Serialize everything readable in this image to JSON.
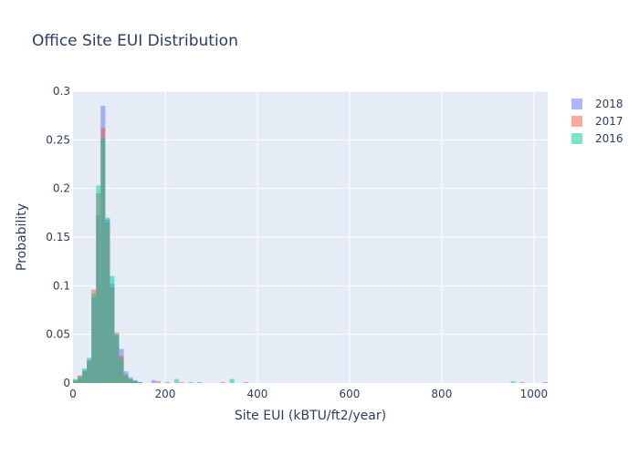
{
  "chart_data": {
    "type": "histogram",
    "title": "Office Site EUI Distribution",
    "xlabel": "Site EUI (kBTU/ft2/year)",
    "ylabel": "Probability",
    "xlim": [
      0,
      1030
    ],
    "ylim": [
      0,
      0.3
    ],
    "x_ticks": [
      0,
      200,
      400,
      600,
      800,
      1000
    ],
    "y_ticks": [
      0,
      0.05,
      0.1,
      0.15,
      0.2,
      0.25,
      0.3
    ],
    "x_tick_labels": [
      "0",
      "200",
      "400",
      "600",
      "800",
      "1000"
    ],
    "y_tick_labels": [
      "0",
      "0.05",
      "0.1",
      "0.15",
      "0.2",
      "0.25",
      "0.3"
    ],
    "grid": true,
    "legend_position": "top-right",
    "bin_width": 10,
    "series": [
      {
        "name": "2018",
        "color": "#636efa",
        "bins": [
          [
            0,
            0.002
          ],
          [
            10,
            0.005
          ],
          [
            20,
            0.013
          ],
          [
            30,
            0.024
          ],
          [
            40,
            0.088
          ],
          [
            50,
            0.172
          ],
          [
            60,
            0.285
          ],
          [
            70,
            0.168
          ],
          [
            80,
            0.102
          ],
          [
            90,
            0.048
          ],
          [
            100,
            0.035
          ],
          [
            110,
            0.012
          ],
          [
            120,
            0.006
          ],
          [
            130,
            0.003
          ],
          [
            140,
            0.001
          ],
          [
            170,
            0.003
          ],
          [
            200,
            0.001
          ],
          [
            270,
            0.001
          ],
          [
            1020,
            0.001
          ]
        ]
      },
      {
        "name": "2017",
        "color": "#ef553b",
        "bins": [
          [
            0,
            0.003
          ],
          [
            10,
            0.008
          ],
          [
            20,
            0.012
          ],
          [
            30,
            0.022
          ],
          [
            40,
            0.096
          ],
          [
            50,
            0.195
          ],
          [
            60,
            0.262
          ],
          [
            70,
            0.165
          ],
          [
            80,
            0.098
          ],
          [
            90,
            0.052
          ],
          [
            100,
            0.028
          ],
          [
            110,
            0.008
          ],
          [
            120,
            0.004
          ],
          [
            130,
            0.002
          ],
          [
            140,
            0.001
          ],
          [
            180,
            0.002
          ],
          [
            230,
            0.001
          ],
          [
            320,
            0.001
          ],
          [
            370,
            0.001
          ],
          [
            970,
            0.001
          ]
        ]
      },
      {
        "name": "2016",
        "color": "#00cc96",
        "bins": [
          [
            0,
            0.004
          ],
          [
            10,
            0.007
          ],
          [
            20,
            0.015
          ],
          [
            30,
            0.026
          ],
          [
            40,
            0.092
          ],
          [
            50,
            0.203
          ],
          [
            60,
            0.252
          ],
          [
            70,
            0.17
          ],
          [
            80,
            0.11
          ],
          [
            90,
            0.05
          ],
          [
            100,
            0.025
          ],
          [
            110,
            0.009
          ],
          [
            120,
            0.004
          ],
          [
            130,
            0.002
          ],
          [
            140,
            0.001
          ],
          [
            220,
            0.004
          ],
          [
            250,
            0.001
          ],
          [
            340,
            0.004
          ],
          [
            950,
            0.002
          ]
        ]
      }
    ]
  }
}
